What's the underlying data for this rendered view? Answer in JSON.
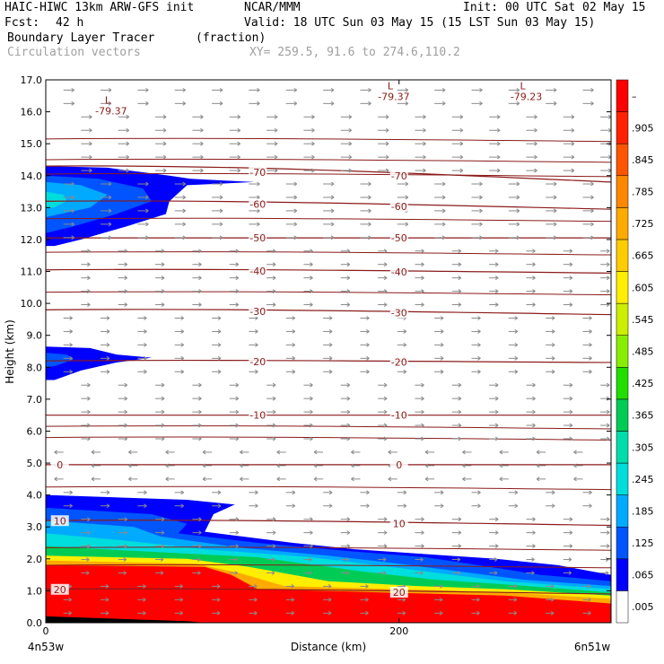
{
  "header": {
    "model": "HAIC-HIWC 13km ARW-GFS init",
    "org": "NCAR/MMM",
    "init": "Init: 00 UTC Sat 02 May 15",
    "fcst_label": "Fcst:",
    "fcst_value": "42 h",
    "valid": "Valid: 18 UTC Sun 03 May 15 (15 LST Sun 03 May 15)",
    "field": "Boundary Layer Tracer",
    "units": "(fraction)",
    "vectors": "Circulation vectors",
    "xy": "XY= 259.5, 91.6 to 274.6,110.2"
  },
  "colors": {
    "isotherm": "#8b1a1a",
    "vector": "#8a8a8a",
    "tracer_blue": "#1a3fe6",
    "tracer_red": "#ff0000"
  },
  "chart_data": {
    "type": "heatmap",
    "title": "Boundary Layer Tracer (fraction)",
    "xlabel": "Distance (km)",
    "ylabel": "Height (km)",
    "xlim": [
      0,
      320
    ],
    "ylim": [
      0,
      17
    ],
    "x_ticks": [
      {
        "value": 0,
        "label": "0"
      },
      {
        "value": 200,
        "label": "200"
      }
    ],
    "x_end_labels": {
      "left": "4n53w",
      "right": "6n51w"
    },
    "y_ticks": [
      "0.0",
      "1.0",
      "2.0",
      "3.0",
      "4.0",
      "5.0",
      "6.0",
      "7.0",
      "8.0",
      "9.0",
      "10.0",
      "11.0",
      "12.0",
      "13.0",
      "14.0",
      "15.0",
      "16.0",
      "17.0"
    ],
    "colorbar": {
      "labels": [
        ".005",
        ".065",
        ".125",
        ".185",
        ".245",
        ".305",
        ".365",
        ".425",
        ".485",
        ".545",
        ".605",
        ".665",
        ".725",
        ".785",
        ".845",
        ".905",
        "–"
      ],
      "colors": [
        "#ffffff",
        "#0000ff",
        "#0055ff",
        "#00aaff",
        "#00dddd",
        "#00ddaa",
        "#00cc55",
        "#22dd00",
        "#88ee00",
        "#ccee00",
        "#ffee00",
        "#ffcc00",
        "#ffaa00",
        "#ff8800",
        "#ff5500",
        "#ff2200",
        "#ff0000"
      ]
    },
    "isotherms": [
      {
        "value": 20,
        "label": "20",
        "y_left": 1.05,
        "y_right": 0.9
      },
      {
        "value": 10,
        "label": "10",
        "y_left": 3.2,
        "y_right": 3.05
      },
      {
        "value": 0,
        "label": "0",
        "y_left": 4.95,
        "y_right": 4.95
      },
      {
        "value": -10,
        "label": "-10",
        "y_left": 6.5,
        "y_right": 6.5
      },
      {
        "value": -20,
        "label": "-20",
        "y_left": 8.2,
        "y_right": 8.15
      },
      {
        "value": -30,
        "label": "-30",
        "y_left": 9.8,
        "y_right": 9.65
      },
      {
        "value": -40,
        "label": "-40",
        "y_left": 11.05,
        "y_right": 10.95
      },
      {
        "value": -50,
        "label": "-50",
        "y_left": 12.05,
        "y_right": 12.05
      },
      {
        "value": -60,
        "label": "-60",
        "y_left": 13.2,
        "y_right": 12.95
      },
      {
        "value": -70,
        "label": "-70",
        "y_left": 14.3,
        "y_right": 13.8
      }
    ],
    "extra_contours_y": [
      15.15,
      14.5,
      14.05,
      12.65,
      11.6,
      10.35,
      6.15,
      5.8,
      4.25,
      2.35,
      1.8
    ],
    "low_centers": [
      {
        "label": "L",
        "value": "-79.37",
        "x": 35,
        "y": 16.25
      },
      {
        "label": "L",
        "value": "-79.37",
        "x": 195,
        "y": 16.7
      },
      {
        "label": "L",
        "value": "-79.23",
        "x": 270,
        "y": 16.7
      }
    ],
    "tracer_regions": [
      {
        "level": ".065",
        "region": "upper anvil",
        "x_extent_km": [
          0,
          118
        ],
        "y_extent_km": [
          11.8,
          14.3
        ]
      },
      {
        "level": ".065",
        "region": "mid layer",
        "x_extent_km": [
          0,
          60
        ],
        "y_extent_km": [
          7.6,
          8.6
        ]
      },
      {
        "level": ".065",
        "region": "boundary layer top",
        "x_extent_km": [
          0,
          320
        ],
        "y_extent_km": [
          0,
          4.0
        ]
      },
      {
        "level": ">.905",
        "region": "boundary layer core",
        "x_extent_km": [
          0,
          320
        ],
        "y_extent_km": [
          0,
          1.8
        ]
      }
    ]
  }
}
